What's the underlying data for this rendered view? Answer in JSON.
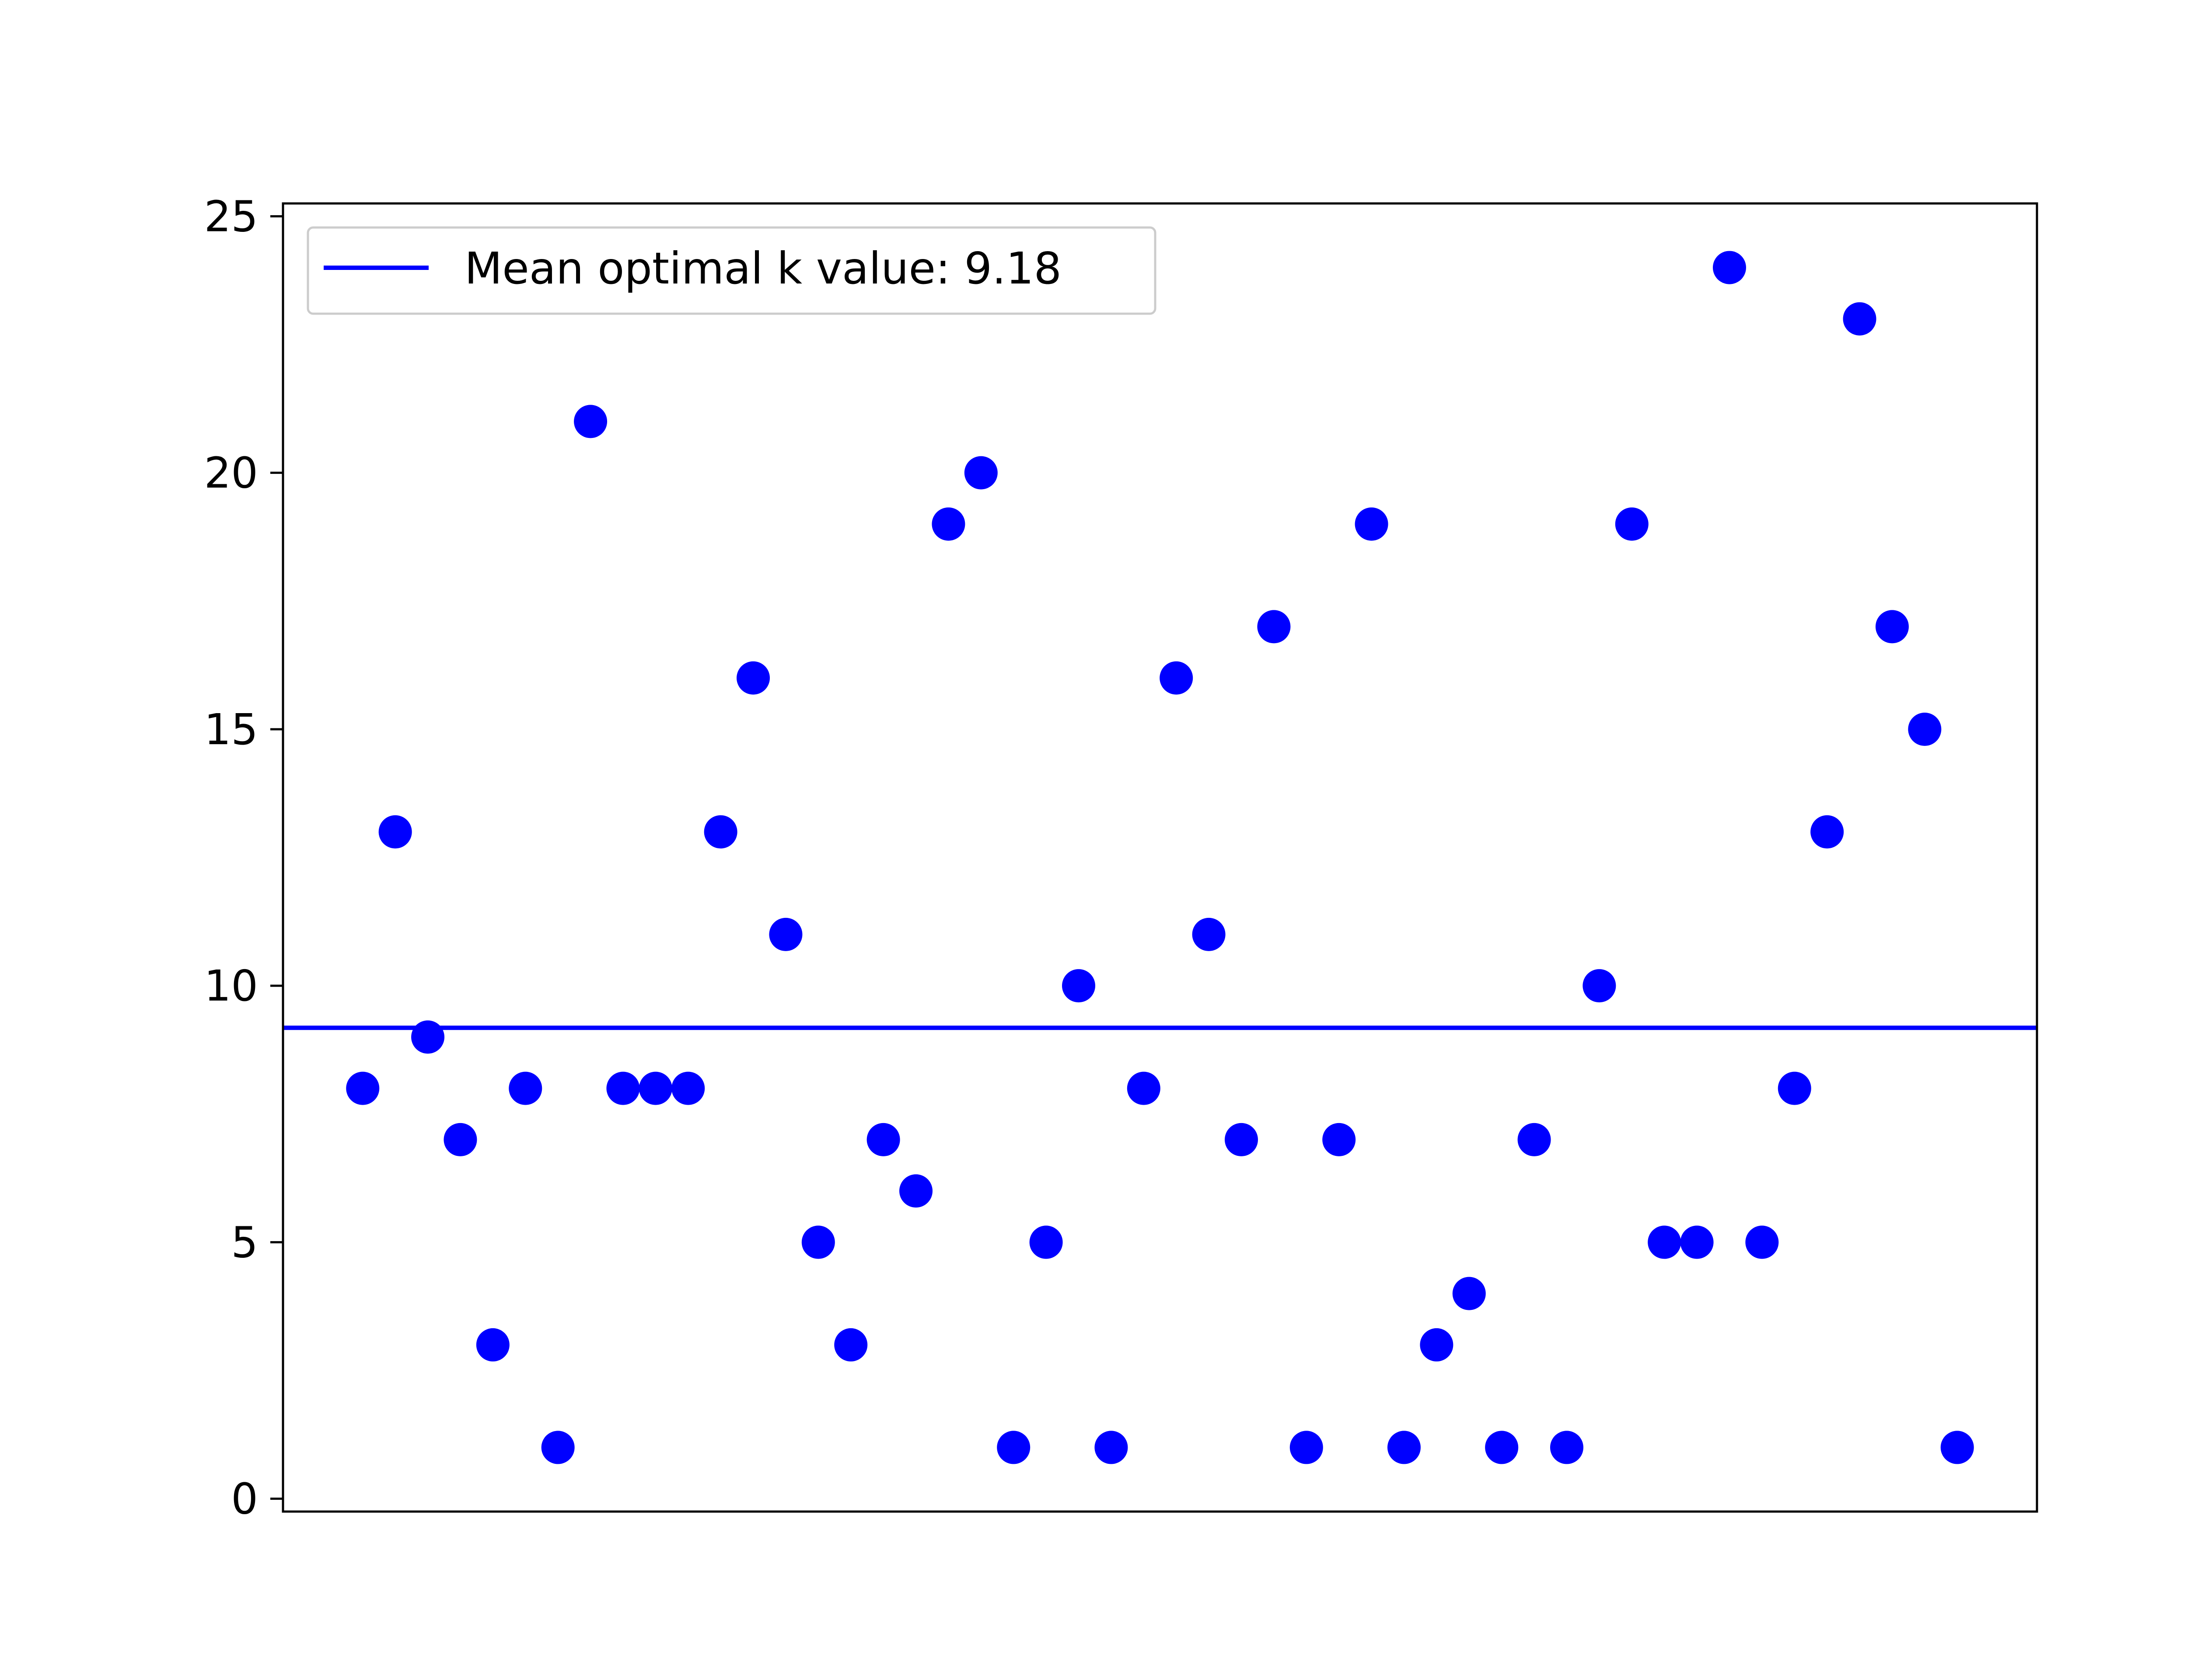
{
  "chart_data": {
    "type": "scatter",
    "title": "",
    "xlabel": "",
    "ylabel": "",
    "x_ticks_visible": false,
    "ylim": [
      -0.25,
      25.25
    ],
    "y_ticks": [
      0,
      5,
      10,
      15,
      20,
      25
    ],
    "grid": false,
    "legend_position": "top-left",
    "point_color": "#0000ff",
    "line_color": "#0000ff",
    "points": [
      8,
      13,
      9,
      7,
      3,
      8,
      1,
      21,
      8,
      8,
      8,
      13,
      16,
      11,
      5,
      3,
      7,
      6,
      19,
      20,
      1,
      5,
      10,
      1,
      8,
      16,
      11,
      7,
      17,
      1,
      7,
      19,
      1,
      3,
      4,
      1,
      7,
      1,
      10,
      19,
      5,
      5,
      24,
      5,
      8,
      13,
      23,
      17,
      15,
      1
    ],
    "mean_line": {
      "value": 9.18,
      "legend_label": "Mean optimal k value: 9.18"
    }
  }
}
